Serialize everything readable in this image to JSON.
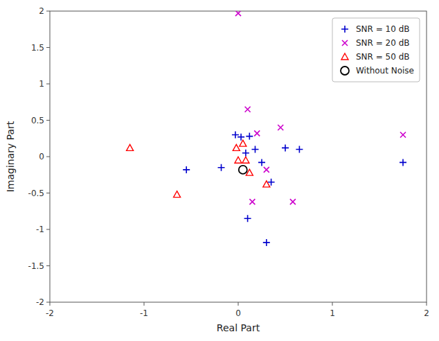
{
  "chart_data": {
    "type": "scatter",
    "xlabel": "Real Part",
    "ylabel": "Imaginary Part",
    "xlim": [
      -2,
      2
    ],
    "ylim": [
      -2,
      2
    ],
    "xticks": [
      -2,
      -1,
      0,
      1,
      2
    ],
    "yticks": [
      -2,
      -1.5,
      -1,
      -0.5,
      0,
      0.5,
      1,
      1.5,
      2
    ],
    "grid": false,
    "legend": "upper right",
    "series": [
      {
        "name": "SNR = 10 dB",
        "color": "#0000CD",
        "marker": "plus",
        "x": [
          -0.55,
          -0.18,
          -0.03,
          0.03,
          0.08,
          0.12,
          0.18,
          0.25,
          0.35,
          0.5,
          0.65,
          1.75,
          0.1,
          0.3
        ],
        "values": [
          -0.18,
          -0.15,
          0.3,
          0.27,
          0.05,
          0.28,
          0.1,
          -0.08,
          -0.35,
          0.12,
          0.1,
          -0.08,
          -0.85,
          -1.18
        ]
      },
      {
        "name": "SNR = 20 dB",
        "color": "#CC00CC",
        "marker": "x",
        "x": [
          0.0,
          0.1,
          0.2,
          0.3,
          0.45,
          0.58,
          1.75,
          0.15
        ],
        "values": [
          1.97,
          0.65,
          0.32,
          -0.18,
          0.4,
          -0.62,
          0.3,
          -0.62
        ]
      },
      {
        "name": "SNR = 50 dB",
        "color": "#FF0000",
        "marker": "triangle",
        "x": [
          -1.15,
          -0.65,
          -0.02,
          0.0,
          0.05,
          0.08,
          0.12,
          0.3
        ],
        "values": [
          0.12,
          -0.52,
          0.12,
          -0.05,
          0.18,
          -0.05,
          -0.22,
          -0.38
        ]
      },
      {
        "name": "Without Noise",
        "color": "#000000",
        "marker": "circle",
        "x": [
          0.05
        ],
        "values": [
          -0.18
        ]
      }
    ]
  }
}
